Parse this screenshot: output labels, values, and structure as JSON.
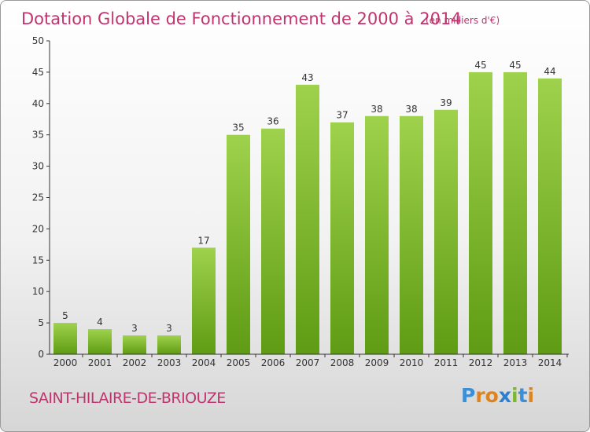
{
  "colors": {
    "title": "#c0346e",
    "bar_light": "#9fd24c",
    "bar_dark": "#5f9b14",
    "axis": "#333333",
    "grid": "#cfcfcf"
  },
  "chart_data": {
    "type": "bar",
    "title": "Dotation Globale de Fonctionnement de 2000 à 2014",
    "subtitle": "(en milliers d'€)",
    "categories": [
      "2000",
      "2001",
      "2002",
      "2003",
      "2004",
      "2005",
      "2006",
      "2007",
      "2008",
      "2009",
      "2010",
      "2011",
      "2012",
      "2013",
      "2014"
    ],
    "values": [
      5,
      4,
      3,
      3,
      17,
      35,
      36,
      43,
      37,
      38,
      38,
      39,
      45,
      45,
      44
    ],
    "value_labels": [
      "5",
      "4",
      "3",
      "3",
      "17",
      "35",
      "36",
      "43",
      "37",
      "38",
      "38",
      "39",
      "45",
      "45",
      "44"
    ],
    "ylim": [
      0,
      50
    ],
    "yticks": [
      0,
      5,
      10,
      15,
      20,
      25,
      30,
      35,
      40,
      45,
      50
    ],
    "ytick_labels": [
      "0",
      "5",
      "10",
      "15",
      "20",
      "25",
      "30",
      "35",
      "40",
      "45",
      "50"
    ],
    "grid": false
  },
  "commune": "SAINT-HILAIRE-DE-BRIOUZE",
  "logo": {
    "letters": [
      "P",
      "r",
      "o",
      "x",
      "i",
      "t",
      "i"
    ],
    "colors": [
      "#3a8fd6",
      "#e0831f",
      "#e0831f",
      "#2b7fd0",
      "#7cb82f",
      "#3a8fd6",
      "#e0831f"
    ]
  }
}
